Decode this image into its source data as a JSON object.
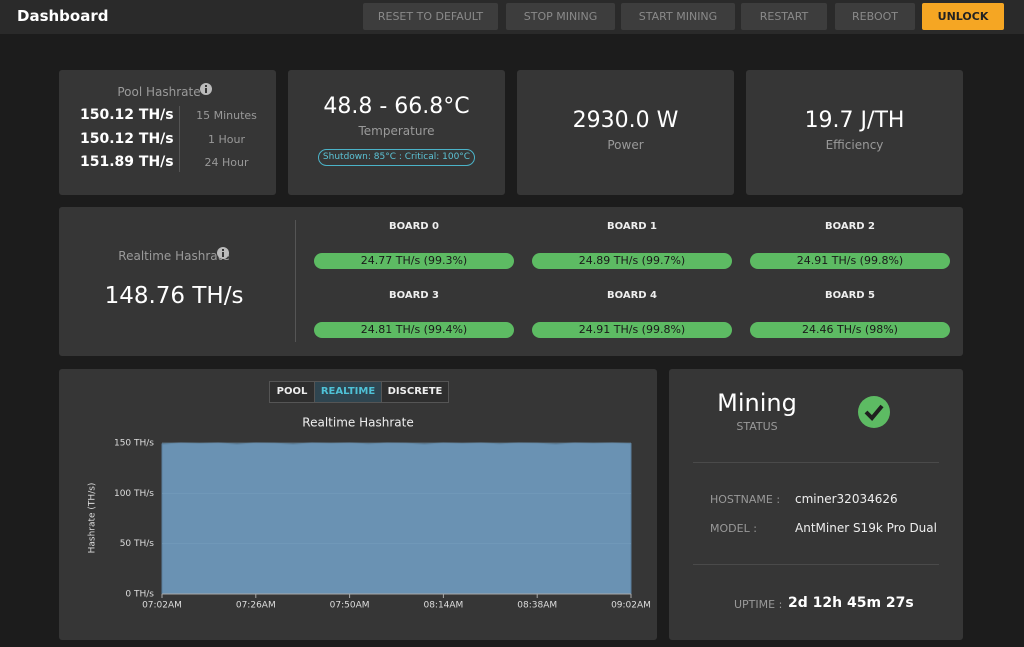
{
  "header": {
    "title": "Dashboard",
    "buttons": [
      "RESET TO DEFAULT",
      "STOP MINING",
      "START MINING",
      "RESTART",
      "REBOOT",
      "UNLOCK"
    ]
  },
  "pool_hashrate": {
    "title": "Pool Hashrate",
    "rows": [
      [
        "150.12 TH/s",
        "15 Minutes"
      ],
      [
        "150.12 TH/s",
        "1 Hour"
      ],
      [
        "151.89 TH/s",
        "24 Hour"
      ]
    ]
  },
  "temperature": {
    "value": "48.8 - 66.8°C",
    "label": "Temperature",
    "limits": "Shutdown: 85°C : Critical: 100°C"
  },
  "power": {
    "value": "2930.0 W",
    "label": "Power"
  },
  "efficiency": {
    "value": "19.7 J/TH",
    "label": "Efficiency"
  },
  "realtime": {
    "title": "Realtime Hashrate",
    "value": "148.76 TH/s",
    "boards": [
      {
        "name": "BOARD 0",
        "value": "24.77 TH/s (99.3%)"
      },
      {
        "name": "BOARD 1",
        "value": "24.89 TH/s (99.7%)"
      },
      {
        "name": "BOARD 2",
        "value": "24.91 TH/s (99.8%)"
      },
      {
        "name": "BOARD 3",
        "value": "24.81 TH/s (99.4%)"
      },
      {
        "name": "BOARD 4",
        "value": "24.91 TH/s (99.8%)"
      },
      {
        "name": "BOARD 5",
        "value": "24.46 TH/s (98%)"
      }
    ]
  },
  "chart": {
    "tabs": [
      "POOL",
      "REALTIME",
      "DISCRETE"
    ],
    "chart_data": {
      "type": "area",
      "title": "Realtime Hashrate",
      "y_label": "Hashrate (TH/s)",
      "categories": [
        "07:02AM",
        null,
        null,
        null,
        null,
        "07:26AM",
        null,
        null,
        null,
        null,
        "07:50AM",
        null,
        null,
        null,
        null,
        "08:14AM",
        null,
        null,
        null,
        null,
        "08:38AM",
        null,
        null,
        null,
        null,
        "09:02AM"
      ],
      "values": [
        149,
        150,
        149.5,
        150,
        149,
        150,
        149.8,
        149,
        150,
        149.6,
        150,
        149.2,
        150,
        149.7,
        149,
        150,
        149.5,
        150,
        149.3,
        150,
        149.8,
        149,
        150,
        149.6,
        150,
        149.4
      ],
      "color": "#6a92b3",
      "ylim": [
        0,
        150
      ],
      "yticks": [
        {
          "value": 0,
          "label": "0 TH/s"
        },
        {
          "value": 50,
          "label": "50 TH/s"
        },
        {
          "value": 100,
          "label": "100 TH/s"
        },
        {
          "value": 150,
          "label": "150 TH/s"
        }
      ],
      "grid": true
    }
  },
  "status": {
    "state": "Mining",
    "label": "STATUS",
    "hostname_label": "HOSTNAME :",
    "hostname": "cminer32034626",
    "model_label": "MODEL :",
    "model": "AntMiner S19k Pro Dual",
    "uptime_label": "UPTIME :",
    "uptime": "2d 12h 45m 27s"
  }
}
